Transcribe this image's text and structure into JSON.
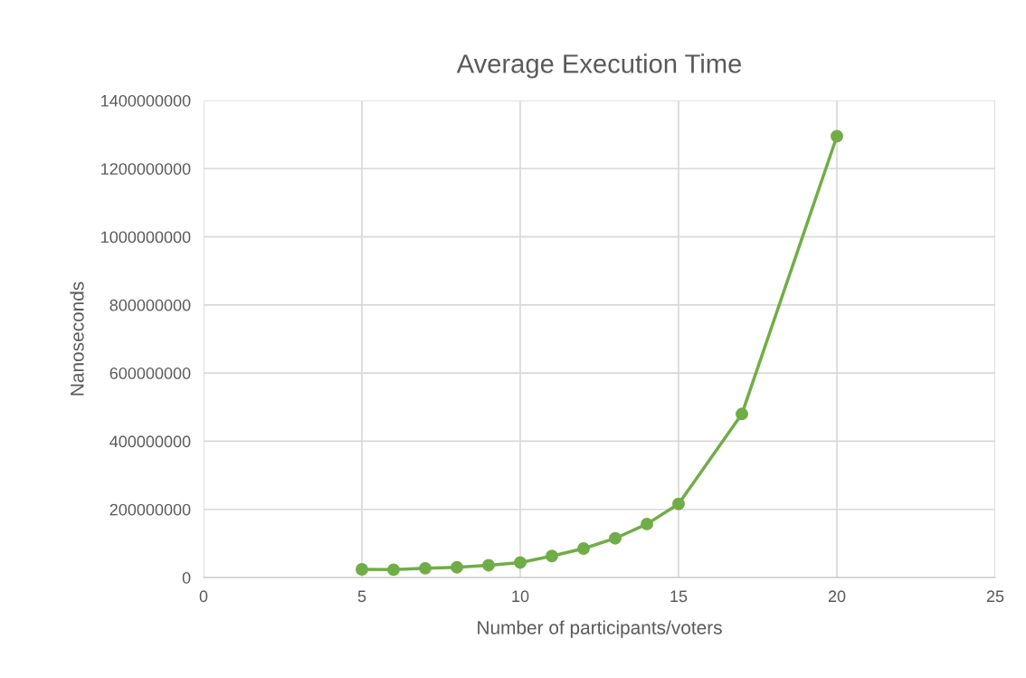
{
  "chart_data": {
    "type": "line",
    "title": "Average Execution Time",
    "xlabel": "Number of participants/voters",
    "ylabel": "Nanoseconds",
    "x": [
      5,
      6,
      7,
      8,
      9,
      10,
      11,
      12,
      13,
      14,
      15,
      17,
      20
    ],
    "series": [
      {
        "color": "#70ad47",
        "values": [
          24000000,
          23000000,
          27000000,
          30000000,
          36000000,
          44000000,
          63000000,
          85000000,
          115000000,
          157000000,
          216000000,
          480000000,
          1295000000
        ]
      }
    ],
    "xlim": [
      0,
      25
    ],
    "xticks": [
      0,
      5,
      10,
      15,
      20,
      25
    ],
    "ylim": [
      0,
      1400000000
    ],
    "yticks": [
      0,
      200000000,
      400000000,
      600000000,
      800000000,
      1000000000,
      1200000000,
      1400000000
    ],
    "grid": true,
    "marker": "circle",
    "line_style": "solid"
  }
}
